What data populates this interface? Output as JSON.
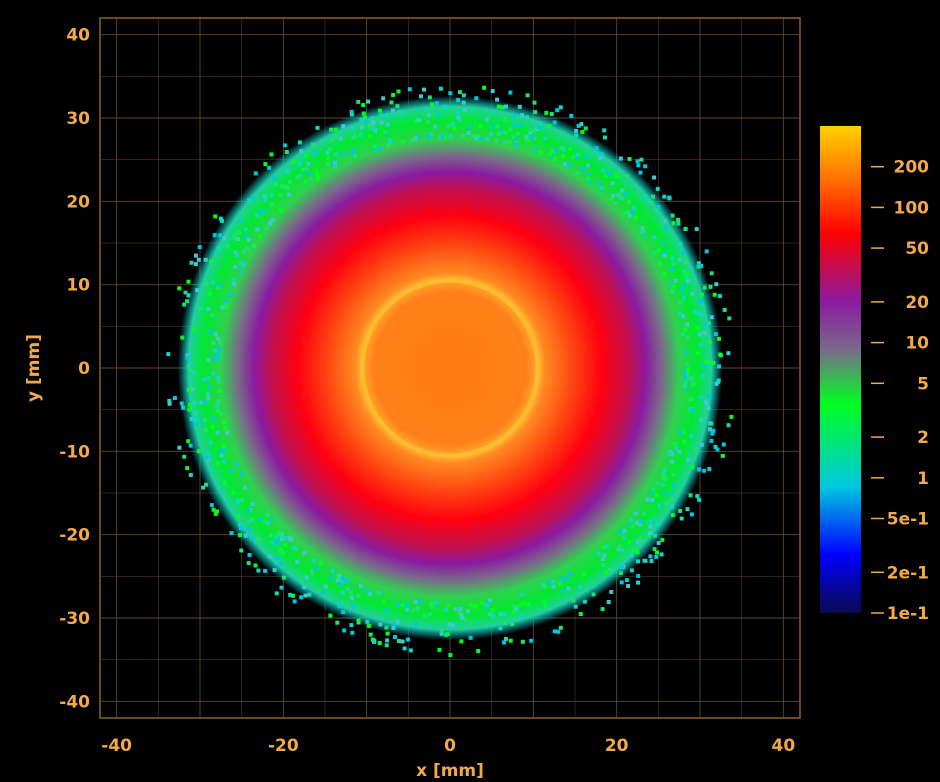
{
  "chart_data": {
    "type": "heatmap",
    "xlabel": "x [mm]",
    "ylabel": "y [mm]",
    "xlim": [
      -42,
      42
    ],
    "ylim": [
      -42,
      42
    ],
    "x_ticks": [
      -40,
      -20,
      0,
      20,
      40
    ],
    "y_ticks": [
      40,
      30,
      20,
      10,
      0,
      -10,
      -20,
      -30,
      -40
    ],
    "grid": true,
    "colorscale": "log",
    "colorbar_range": [
      0.1,
      400
    ],
    "colorbar_ticks": [
      {
        "label": "200",
        "value": 200
      },
      {
        "label": "100",
        "value": 100
      },
      {
        "label": "50",
        "value": 50
      },
      {
        "label": "20",
        "value": 20
      },
      {
        "label": "10",
        "value": 10
      },
      {
        "label": "5",
        "value": 5
      },
      {
        "label": "2",
        "value": 2
      },
      {
        "label": "1",
        "value": 1
      },
      {
        "label": "5e-1",
        "value": 0.5
      },
      {
        "label": "2e-1",
        "value": 0.2
      },
      {
        "label": "1e-1",
        "value": 0.1
      }
    ],
    "colormap": [
      "#0a0a50",
      "#0000ff",
      "#00c8e0",
      "#00ff20",
      "#7a6a8a",
      "#8a1aa0",
      "#ff0000",
      "#ff7a00",
      "#ffd000"
    ],
    "distribution": {
      "shape": "radial",
      "center": [
        0,
        0
      ],
      "edge_radius_mm": 31,
      "ring_radius_mm": 10.5,
      "peak_value": 250
    }
  }
}
